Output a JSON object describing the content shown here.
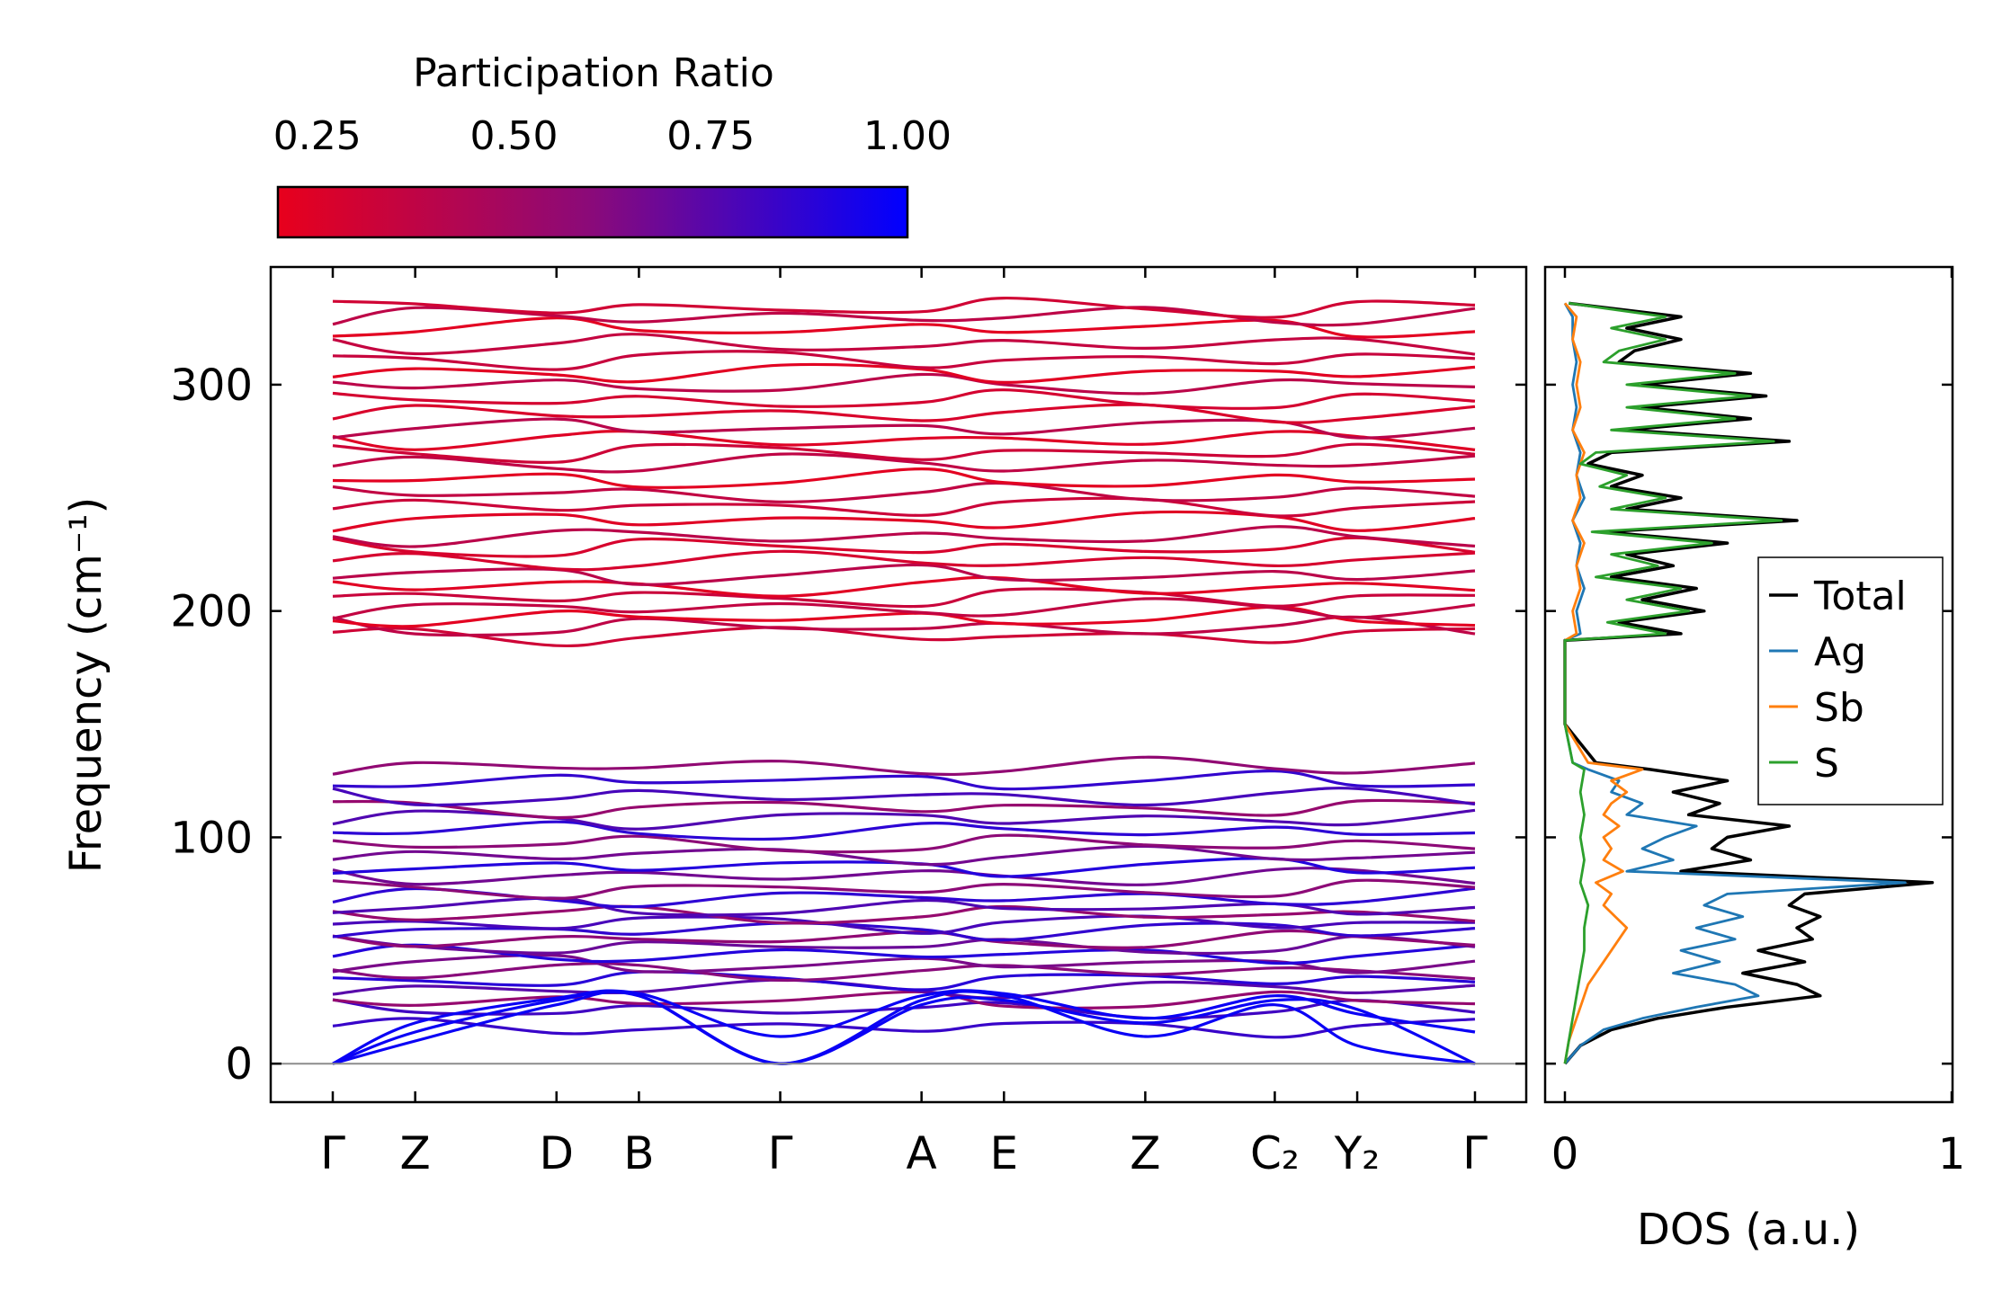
{
  "chart_data": [
    {
      "type": "colorbar",
      "title": "Participation Ratio",
      "range": [
        0.2,
        1.0
      ],
      "ticks": [
        0.25,
        0.5,
        0.75,
        1.0
      ],
      "tick_labels": [
        "0.25",
        "0.50",
        "0.75",
        "1.00"
      ],
      "color_low": "#e8001c",
      "color_mid": "#8a0a7a",
      "color_high": "#0000ff",
      "placement": "top-left"
    },
    {
      "type": "line",
      "title": "",
      "xlabel": "",
      "ylabel": "Frequency (cm⁻¹)",
      "ylim": [
        -17,
        352
      ],
      "yticks": [
        0,
        100,
        200,
        300
      ],
      "ytick_labels": [
        "0",
        "100",
        "200",
        "300"
      ],
      "path_points": [
        0,
        0.7,
        1.9,
        2.6,
        3.8,
        5.0,
        5.7,
        6.9,
        8.0,
        8.7,
        9.7
      ],
      "path_labels": [
        "Γ",
        "Z",
        "D",
        "B",
        "Γ",
        "A",
        "E",
        "Z",
        "C₂",
        "Y₂",
        "Γ"
      ],
      "acoustic_branches": [
        {
          "name": "acoustic-1",
          "values": [
            0,
            10,
            26,
            30,
            0,
            26,
            28,
            18,
            28,
            24,
            0
          ]
        },
        {
          "name": "acoustic-2",
          "values": [
            0,
            14,
            28,
            30,
            0,
            28,
            30,
            12,
            26,
            8,
            0
          ]
        },
        {
          "name": "acoustic-3",
          "values": [
            0,
            18,
            29,
            31,
            12,
            30,
            31,
            20,
            30,
            22,
            14
          ]
        }
      ],
      "low_band_levels": [
        16,
        24,
        28,
        33,
        37,
        41,
        44,
        48,
        52,
        55,
        59,
        62,
        66,
        69,
        73,
        77,
        83,
        87,
        92,
        97,
        103,
        108,
        113,
        118,
        125,
        131
      ],
      "high_band_levels": [
        189,
        193,
        197,
        201,
        206,
        211,
        216,
        222,
        228,
        233,
        240,
        246,
        252,
        258,
        265,
        270,
        276,
        281,
        287,
        293,
        300,
        305,
        311,
        318,
        325,
        330,
        334
      ],
      "band_gap": [
        134,
        187
      ],
      "zero_line": 0
    },
    {
      "type": "line",
      "title": "",
      "xlabel": "DOS (a.u.)",
      "ylabel": "",
      "xlim": [
        0,
        1
      ],
      "xticks": [
        0,
        1
      ],
      "xtick_labels": [
        "0",
        "1"
      ],
      "ylim": [
        -17,
        352
      ],
      "legend_placement": "center-right",
      "series": [
        {
          "name": "Total",
          "color": "#000000",
          "freq": [
            0,
            8,
            15,
            20,
            25,
            30,
            35,
            40,
            45,
            50,
            55,
            60,
            65,
            70,
            75,
            80,
            85,
            90,
            95,
            100,
            105,
            110,
            115,
            120,
            125,
            130,
            133,
            150,
            187,
            190,
            195,
            200,
            205,
            210,
            215,
            220,
            225,
            230,
            235,
            240,
            245,
            250,
            255,
            260,
            265,
            270,
            275,
            280,
            285,
            290,
            295,
            300,
            305,
            310,
            315,
            320,
            325,
            330,
            336
          ],
          "values": [
            0,
            0.04,
            0.12,
            0.24,
            0.42,
            0.66,
            0.6,
            0.46,
            0.62,
            0.5,
            0.64,
            0.6,
            0.66,
            0.58,
            0.62,
            0.95,
            0.3,
            0.48,
            0.38,
            0.42,
            0.58,
            0.32,
            0.4,
            0.28,
            0.42,
            0.22,
            0.08,
            0.0,
            0.0,
            0.3,
            0.14,
            0.36,
            0.2,
            0.34,
            0.12,
            0.28,
            0.16,
            0.42,
            0.1,
            0.6,
            0.16,
            0.3,
            0.12,
            0.2,
            0.06,
            0.12,
            0.58,
            0.16,
            0.48,
            0.2,
            0.52,
            0.2,
            0.48,
            0.14,
            0.18,
            0.3,
            0.16,
            0.3,
            0.01
          ]
        },
        {
          "name": "Ag",
          "color": "#1f77b4",
          "freq": [
            0,
            8,
            15,
            20,
            25,
            30,
            35,
            40,
            45,
            50,
            55,
            60,
            65,
            70,
            75,
            80,
            85,
            90,
            95,
            100,
            105,
            110,
            115,
            120,
            125,
            130,
            133,
            150,
            187,
            190,
            200,
            210,
            220,
            230,
            240,
            250,
            260,
            270,
            280,
            290,
            300,
            310,
            320,
            330,
            336
          ],
          "values": [
            0,
            0.04,
            0.1,
            0.2,
            0.34,
            0.5,
            0.44,
            0.28,
            0.4,
            0.3,
            0.44,
            0.34,
            0.46,
            0.36,
            0.42,
            0.88,
            0.16,
            0.28,
            0.2,
            0.26,
            0.34,
            0.16,
            0.2,
            0.12,
            0.14,
            0.06,
            0.02,
            0.0,
            0.0,
            0.04,
            0.03,
            0.05,
            0.03,
            0.04,
            0.02,
            0.05,
            0.03,
            0.04,
            0.02,
            0.03,
            0.02,
            0.03,
            0.02,
            0.02,
            0.0
          ]
        },
        {
          "name": "Sb",
          "color": "#ff7f0e",
          "freq": [
            0,
            10,
            20,
            30,
            35,
            40,
            45,
            50,
            55,
            60,
            65,
            70,
            75,
            80,
            85,
            90,
            95,
            100,
            105,
            110,
            115,
            120,
            125,
            130,
            133,
            150,
            187,
            190,
            200,
            210,
            220,
            230,
            240,
            250,
            260,
            270,
            280,
            290,
            300,
            310,
            320,
            330,
            336
          ],
          "values": [
            0,
            0.01,
            0.03,
            0.05,
            0.06,
            0.08,
            0.1,
            0.12,
            0.14,
            0.16,
            0.13,
            0.1,
            0.12,
            0.08,
            0.15,
            0.1,
            0.12,
            0.1,
            0.14,
            0.1,
            0.12,
            0.16,
            0.12,
            0.2,
            0.06,
            0.0,
            0.0,
            0.03,
            0.02,
            0.04,
            0.03,
            0.05,
            0.02,
            0.04,
            0.03,
            0.05,
            0.02,
            0.04,
            0.03,
            0.04,
            0.02,
            0.03,
            0.0
          ]
        },
        {
          "name": "S",
          "color": "#2ca02c",
          "freq": [
            0,
            10,
            20,
            30,
            40,
            50,
            60,
            70,
            80,
            90,
            100,
            110,
            120,
            130,
            133,
            150,
            187,
            190,
            195,
            200,
            205,
            210,
            215,
            220,
            225,
            230,
            235,
            240,
            245,
            250,
            255,
            260,
            265,
            270,
            275,
            280,
            285,
            290,
            295,
            300,
            305,
            310,
            315,
            320,
            325,
            330,
            336
          ],
          "values": [
            0,
            0.01,
            0.02,
            0.03,
            0.04,
            0.05,
            0.05,
            0.06,
            0.04,
            0.05,
            0.04,
            0.05,
            0.04,
            0.05,
            0.02,
            0.0,
            0.0,
            0.26,
            0.11,
            0.32,
            0.16,
            0.3,
            0.08,
            0.24,
            0.12,
            0.38,
            0.07,
            0.56,
            0.12,
            0.26,
            0.09,
            0.16,
            0.04,
            0.08,
            0.54,
            0.12,
            0.44,
            0.16,
            0.48,
            0.16,
            0.44,
            0.1,
            0.14,
            0.26,
            0.12,
            0.26,
            0.01
          ]
        }
      ]
    }
  ]
}
